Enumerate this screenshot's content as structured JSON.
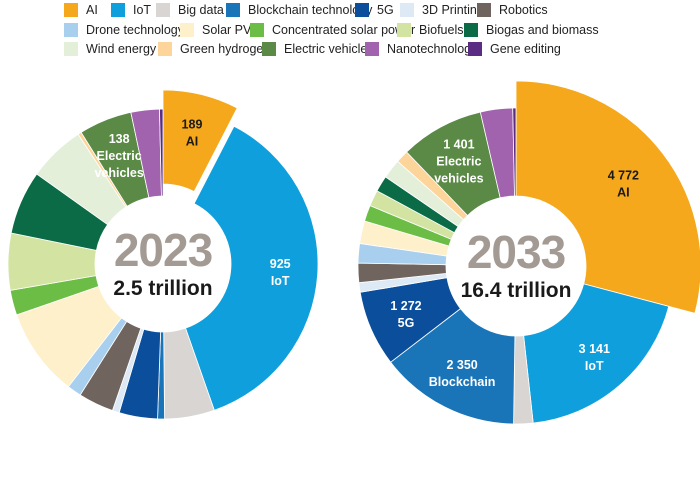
{
  "legend": [
    {
      "name": "AI",
      "color": "#f5a81c"
    },
    {
      "name": "IoT",
      "color": "#0f9fdc"
    },
    {
      "name": "Big data",
      "color": "#d9d5d2"
    },
    {
      "name": "Blockchain technology",
      "color": "#1a74b8"
    },
    {
      "name": "5G",
      "color": "#0b4f9c"
    },
    {
      "name": "3D Printing",
      "color": "#dde9f5"
    },
    {
      "name": "Robotics",
      "color": "#6f645e"
    },
    {
      "name": "Drone technology",
      "color": "#a9cfee"
    },
    {
      "name": "Solar PV",
      "color": "#fdf0cb"
    },
    {
      "name": "Concentrated solar power",
      "color": "#6cbd45"
    },
    {
      "name": "Biofuels",
      "color": "#d3e4a2"
    },
    {
      "name": "Biogas and biomass",
      "color": "#0a6b46"
    },
    {
      "name": "Wind energy",
      "color": "#e3efd9"
    },
    {
      "name": "Green hydrogen",
      "color": "#fdd59a"
    },
    {
      "name": "Electric vehicles",
      "color": "#5a8a46"
    },
    {
      "name": "Nanotechnology",
      "color": "#a263ae"
    },
    {
      "name": "Gene editing",
      "color": "#5a2d83"
    }
  ],
  "chart_data": [
    {
      "type": "pie",
      "variant": "donut",
      "year": "2023",
      "total_label": "2.5 trillion",
      "categories": [
        "AI",
        "IoT",
        "Big data",
        "Blockchain technology",
        "5G",
        "3D Printing",
        "Robotics",
        "Drone technology",
        "Solar PV",
        "Concentrated solar power",
        "Biofuels",
        "Biogas and biomass",
        "Wind energy",
        "Green hydrogen",
        "Electric vehicles",
        "Nanotechnology",
        "Gene editing"
      ],
      "values": [
        189,
        925,
        130,
        18,
        100,
        18,
        92,
        37,
        230,
        65,
        148,
        166,
        148,
        9,
        138,
        74,
        9
      ],
      "data_labels": [
        {
          "category": "AI",
          "value_text": "189",
          "text": "AI"
        },
        {
          "category": "IoT",
          "value_text": "925",
          "text": "IoT"
        },
        {
          "category": "Electric vehicles",
          "value_text": "138",
          "text": "Electric vehicles"
        }
      ]
    },
    {
      "type": "pie",
      "variant": "donut",
      "year": "2033",
      "total_label": "16.4 trillion",
      "categories": [
        "AI",
        "IoT",
        "Big data",
        "Blockchain technology",
        "5G",
        "3D Printing",
        "Robotics",
        "Drone technology",
        "Solar PV",
        "Concentrated solar power",
        "Biofuels",
        "Biogas and biomass",
        "Wind energy",
        "Green hydrogen",
        "Electric vehicles",
        "Nanotechnology",
        "Gene editing"
      ],
      "values": [
        4772,
        3141,
        325,
        2350,
        1272,
        160,
        325,
        325,
        380,
        270,
        270,
        270,
        325,
        215,
        1401,
        540,
        54
      ],
      "data_labels": [
        {
          "category": "AI",
          "value_text": "4 772",
          "text": "AI"
        },
        {
          "category": "IoT",
          "value_text": "3 141",
          "text": "IoT"
        },
        {
          "category": "Blockchain technology",
          "value_text": "2 350",
          "text": "Blockchain"
        },
        {
          "category": "5G",
          "value_text": "1 272",
          "text": "5G"
        },
        {
          "category": "Electric vehicles",
          "value_text": "1 401",
          "text": "Electric vehicles"
        }
      ]
    }
  ]
}
